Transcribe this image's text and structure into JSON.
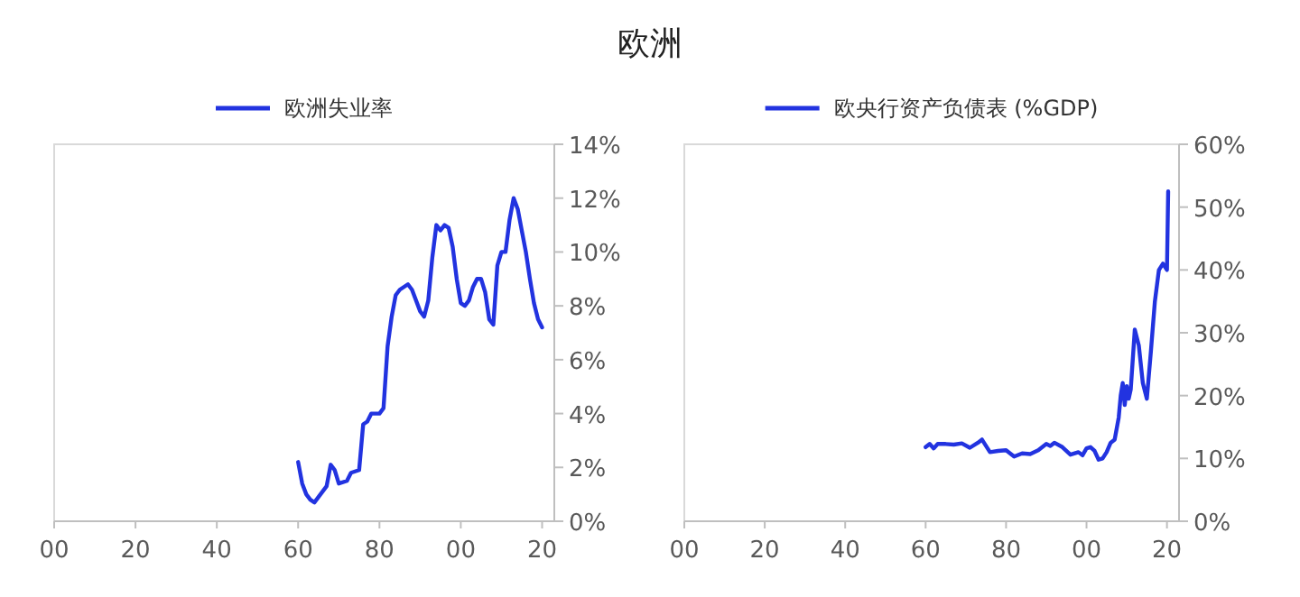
{
  "chart_data": [
    {
      "type": "line",
      "title": "欧洲",
      "legend": "top",
      "xlim": [
        1900,
        2023
      ],
      "xticks": [
        {
          "value": 1900,
          "label": "00"
        },
        {
          "value": 1920,
          "label": "20"
        },
        {
          "value": 1940,
          "label": "40"
        },
        {
          "value": 1960,
          "label": "60"
        },
        {
          "value": 1980,
          "label": "80"
        },
        {
          "value": 2000,
          "label": "00"
        },
        {
          "value": 2020,
          "label": "20"
        }
      ],
      "ylim": [
        0,
        14
      ],
      "yticks": [
        {
          "value": 0,
          "label": "0%"
        },
        {
          "value": 2,
          "label": "2%"
        },
        {
          "value": 4,
          "label": "4%"
        },
        {
          "value": 6,
          "label": "6%"
        },
        {
          "value": 8,
          "label": "8%"
        },
        {
          "value": 10,
          "label": "10%"
        },
        {
          "value": 12,
          "label": "12%"
        },
        {
          "value": 14,
          "label": "14%"
        }
      ],
      "series": [
        {
          "name": "欧洲失业率",
          "color": "#2233e0",
          "x": [
            1960,
            1961,
            1962,
            1963,
            1964,
            1965,
            1966,
            1967,
            1968,
            1969,
            1970,
            1972,
            1973,
            1975,
            1976,
            1977,
            1978,
            1980,
            1981,
            1982,
            1983,
            1984,
            1985,
            1987,
            1988,
            1990,
            1991,
            1992,
            1993,
            1994,
            1995,
            1996,
            1997,
            1998,
            1999,
            2000,
            2001,
            2002,
            2003,
            2004,
            2005,
            2006,
            2007,
            2008,
            2009,
            2010,
            2011,
            2012,
            2013,
            2014,
            2015,
            2016,
            2017,
            2018,
            2019,
            2020
          ],
          "values": [
            2.2,
            1.4,
            1.0,
            0.8,
            0.7,
            0.9,
            1.1,
            1.3,
            2.1,
            1.9,
            1.4,
            1.5,
            1.8,
            1.9,
            3.6,
            3.7,
            4.0,
            4.0,
            4.2,
            6.5,
            7.6,
            8.4,
            8.6,
            8.8,
            8.6,
            7.8,
            7.6,
            8.2,
            9.8,
            11.0,
            10.8,
            11.0,
            10.9,
            10.2,
            9.0,
            8.1,
            8.0,
            8.2,
            8.7,
            9.0,
            9.0,
            8.5,
            7.5,
            7.3,
            9.5,
            10.0,
            10.0,
            11.2,
            12.0,
            11.6,
            10.8,
            10.0,
            9.0,
            8.1,
            7.5,
            7.2
          ]
        }
      ]
    },
    {
      "type": "line",
      "legend": "top",
      "xlim": [
        1900,
        2023
      ],
      "xticks": [
        {
          "value": 1900,
          "label": "00"
        },
        {
          "value": 1920,
          "label": "20"
        },
        {
          "value": 1940,
          "label": "40"
        },
        {
          "value": 1960,
          "label": "60"
        },
        {
          "value": 1980,
          "label": "80"
        },
        {
          "value": 2000,
          "label": "00"
        },
        {
          "value": 2020,
          "label": "20"
        }
      ],
      "ylim": [
        0,
        60
      ],
      "yticks": [
        {
          "value": 0,
          "label": "0%"
        },
        {
          "value": 10,
          "label": "10%"
        },
        {
          "value": 20,
          "label": "20%"
        },
        {
          "value": 30,
          "label": "30%"
        },
        {
          "value": 40,
          "label": "40%"
        },
        {
          "value": 50,
          "label": "50%"
        },
        {
          "value": 60,
          "label": "60%"
        }
      ],
      "series": [
        {
          "name": "欧央行资产负债表 (%GDP)",
          "color": "#2233e0",
          "x": [
            1960,
            1961,
            1962,
            1963,
            1965,
            1967,
            1969,
            1971,
            1973,
            1974,
            1975,
            1976,
            1978,
            1980,
            1982,
            1984,
            1986,
            1988,
            1990,
            1991,
            1992,
            1994,
            1996,
            1998,
            1999,
            2000,
            2001,
            2002,
            2003,
            2004,
            2005,
            2006,
            2007,
            2008,
            2008.5,
            2009,
            2009.5,
            2010,
            2010.5,
            2011,
            2012,
            2013,
            2014,
            2015,
            2016,
            2017,
            2018,
            2019,
            2020,
            2020.3
          ],
          "values": [
            11.8,
            12.3,
            11.6,
            12.3,
            12.3,
            12.2,
            12.4,
            11.7,
            12.5,
            13.0,
            12.0,
            11.0,
            11.2,
            11.3,
            10.3,
            10.8,
            10.7,
            11.3,
            12.3,
            12.0,
            12.5,
            11.8,
            10.6,
            11.0,
            10.5,
            11.6,
            11.8,
            11.2,
            9.8,
            10.0,
            11.0,
            12.5,
            13.0,
            16.5,
            20,
            22,
            18.5,
            21.5,
            19.5,
            21,
            30.5,
            28,
            22,
            19.5,
            27,
            35,
            40,
            41,
            40,
            52.5
          ]
        }
      ]
    }
  ]
}
